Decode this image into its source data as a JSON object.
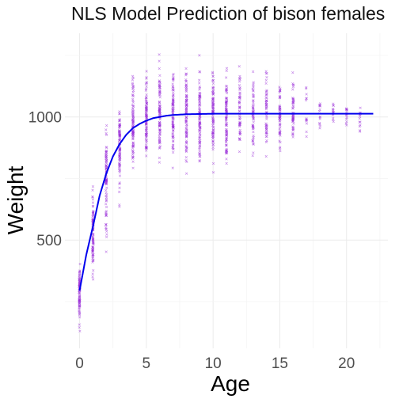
{
  "colors": {
    "points": "#9b30d9",
    "fit_line": "#0000ee",
    "grid": "#ebebeb",
    "text": "#111111"
  },
  "chart_data": {
    "type": "scatter",
    "title": "NLS Model Prediction of bison females",
    "xlabel": "Age",
    "ylabel": "Weight",
    "xlim": [
      -1.1,
      23.1
    ],
    "ylim": [
      60,
      1340
    ],
    "x_ticks": [
      0,
      5,
      10,
      15,
      20
    ],
    "y_ticks": [
      500,
      1000
    ],
    "x_tick_labels": [
      "0",
      "5",
      "10",
      "15",
      "20"
    ],
    "y_tick_labels": [
      "500",
      "1000"
    ],
    "grid": true,
    "legend": "none",
    "point_shape": "x",
    "series": [
      {
        "type": "scatter",
        "points_by_age": [
          {
            "age": 0,
            "weight_min": 90,
            "weight_max": 450
          },
          {
            "age": 1,
            "weight_min": 300,
            "weight_max": 760
          },
          {
            "age": 2,
            "weight_min": 420,
            "weight_max": 990
          },
          {
            "age": 3,
            "weight_min": 610,
            "weight_max": 1080
          },
          {
            "age": 4,
            "weight_min": 740,
            "weight_max": 1250
          },
          {
            "age": 5,
            "weight_min": 770,
            "weight_max": 1250
          },
          {
            "age": 6,
            "weight_min": 790,
            "weight_max": 1300
          },
          {
            "age": 7,
            "weight_min": 760,
            "weight_max": 1240
          },
          {
            "age": 8,
            "weight_min": 730,
            "weight_max": 1230
          },
          {
            "age": 9,
            "weight_min": 760,
            "weight_max": 1270
          },
          {
            "age": 10,
            "weight_min": 740,
            "weight_max": 1240
          },
          {
            "age": 11,
            "weight_min": 770,
            "weight_max": 1240
          },
          {
            "age": 12,
            "weight_min": 790,
            "weight_max": 1250
          },
          {
            "age": 13,
            "weight_min": 790,
            "weight_max": 1220
          },
          {
            "age": 14,
            "weight_min": 800,
            "weight_max": 1220
          },
          {
            "age": 15,
            "weight_min": 830,
            "weight_max": 1200
          },
          {
            "age": 16,
            "weight_min": 870,
            "weight_max": 1190
          },
          {
            "age": 17,
            "weight_min": 880,
            "weight_max": 1200
          },
          {
            "age": 18,
            "weight_min": 920,
            "weight_max": 1110
          },
          {
            "age": 19,
            "weight_min": 940,
            "weight_max": 1080
          },
          {
            "age": 20,
            "weight_min": 930,
            "weight_max": 1060
          },
          {
            "age": 21,
            "weight_min": 860,
            "weight_max": 1050
          }
        ]
      },
      {
        "type": "line",
        "x": [
          0,
          0.5,
          1,
          1.5,
          2,
          2.5,
          3,
          3.5,
          4,
          4.5,
          5,
          5.5,
          6,
          6.5,
          7,
          8,
          9,
          10,
          12,
          14,
          16,
          18,
          20,
          22
        ],
        "y": [
          295,
          440,
          555,
          680,
          770,
          840,
          890,
          928,
          955,
          972,
          985,
          995,
          1000,
          1005,
          1008,
          1011,
          1012,
          1013,
          1013,
          1013,
          1013,
          1013,
          1013,
          1013
        ]
      }
    ]
  }
}
